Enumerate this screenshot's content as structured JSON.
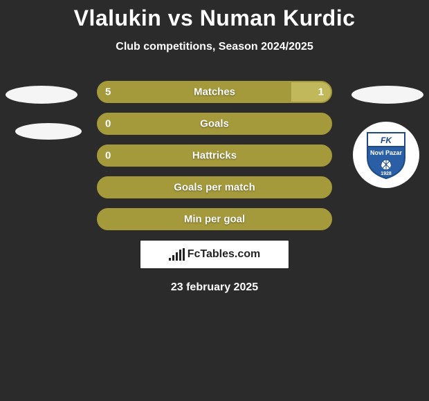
{
  "title": "Vlalukin vs Numan Kurdic",
  "subtitle": "Club competitions, Season 2024/2025",
  "date": "23 february 2025",
  "brand": "FcTables.com",
  "colors": {
    "background": "#2b2b2b",
    "bar_primary": "#a59a3b",
    "bar_secondary": "#c0b85a",
    "bar_border": "#a59a3b",
    "text": "#ffffff"
  },
  "logo_right": {
    "top_text": "FK",
    "mid_text": "Novi Pazar",
    "year": "1928",
    "shield_top_color": "#ffffff",
    "shield_bottom_color": "#2a5fa5",
    "shield_border": "#1d4a85"
  },
  "rows": [
    {
      "label": "Matches",
      "left_val": "5",
      "right_val": "1",
      "left_pct": 83,
      "right_pct": 17,
      "show_vals": true
    },
    {
      "label": "Goals",
      "left_val": "0",
      "right_val": "",
      "left_pct": 100,
      "right_pct": 0,
      "show_vals": true
    },
    {
      "label": "Hattricks",
      "left_val": "0",
      "right_val": "",
      "left_pct": 100,
      "right_pct": 0,
      "show_vals": true
    },
    {
      "label": "Goals per match",
      "left_val": "",
      "right_val": "",
      "left_pct": 100,
      "right_pct": 0,
      "show_vals": false
    },
    {
      "label": "Min per goal",
      "left_val": "",
      "right_val": "",
      "left_pct": 100,
      "right_pct": 0,
      "show_vals": false
    }
  ]
}
